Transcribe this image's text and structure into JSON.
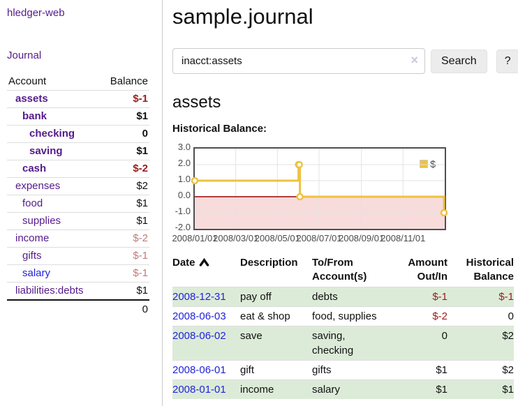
{
  "sidebar": {
    "app_title": "hledger-web",
    "journal_link": "Journal",
    "accounts": {
      "header_account": "Account",
      "header_balance": "Balance",
      "rows": [
        {
          "name": "assets",
          "level": 1,
          "bold": true,
          "name_color": "purple",
          "balance": "$-1",
          "balance_color": "darkred",
          "balance_bold": true
        },
        {
          "name": "bank",
          "level": 2,
          "bold": true,
          "name_color": "purple",
          "balance": "$1",
          "balance_color": "black",
          "balance_bold": true
        },
        {
          "name": "checking",
          "level": 3,
          "bold": true,
          "name_color": "purple",
          "balance": "0",
          "balance_color": "black",
          "balance_bold": true
        },
        {
          "name": "saving",
          "level": 3,
          "bold": true,
          "name_color": "purple",
          "balance": "$1",
          "balance_color": "black",
          "balance_bold": true
        },
        {
          "name": "cash",
          "level": 2,
          "bold": true,
          "name_color": "purple",
          "balance": "$-2",
          "balance_color": "darkred",
          "balance_bold": true
        },
        {
          "name": "expenses",
          "level": 1,
          "bold": false,
          "name_color": "purple",
          "balance": "$2",
          "balance_color": "black",
          "balance_bold": false
        },
        {
          "name": "food",
          "level": 2,
          "bold": false,
          "name_color": "purple",
          "balance": "$1",
          "balance_color": "black",
          "balance_bold": false
        },
        {
          "name": "supplies",
          "level": 2,
          "bold": false,
          "name_color": "purple",
          "balance": "$1",
          "balance_color": "black",
          "balance_bold": false
        },
        {
          "name": "income",
          "level": 1,
          "bold": false,
          "name_color": "purple",
          "balance": "$-2",
          "balance_color": "mutedred",
          "balance_bold": false
        },
        {
          "name": "gifts",
          "level": 2,
          "bold": false,
          "name_color": "purple",
          "balance": "$-1",
          "balance_color": "mutedred",
          "balance_bold": false
        },
        {
          "name": "salary",
          "level": 2,
          "bold": false,
          "name_color": "blue",
          "balance": "$-1",
          "balance_color": "mutedred",
          "balance_bold": false
        },
        {
          "name": "liabilities:debts",
          "level": 1,
          "bold": false,
          "name_color": "purple",
          "balance": "$1",
          "balance_color": "black",
          "balance_bold": false
        }
      ],
      "total": "0"
    }
  },
  "main": {
    "title": "sample.journal",
    "search": {
      "value": "inacct:assets",
      "clear_glyph": "×",
      "button_label": "Search",
      "help_label": "?"
    },
    "account_heading": "assets",
    "chart_title": "Historical Balance:"
  },
  "chart_data": {
    "type": "line",
    "step": true,
    "title": "Historical Balance:",
    "legend_label": "$",
    "legend_position": "top-right",
    "line_color": "#edc240",
    "negative_region_color": "#f8dbdb",
    "zero_line_color": "#9f0000",
    "grid": true,
    "xlim": [
      "2008-01-01",
      "2009-01-01"
    ],
    "ylim": [
      -2,
      3
    ],
    "y_ticks": [
      "3.0",
      "2.0",
      "1.0",
      "0.0",
      "-1.0",
      "-2.0"
    ],
    "x_ticks": [
      {
        "label": "2008/01/01",
        "date": "2008-01-01"
      },
      {
        "label": "2008/03/01",
        "date": "2008-03-01"
      },
      {
        "label": "2008/05/01",
        "date": "2008-05-01"
      },
      {
        "label": "2008/07/01",
        "date": "2008-07-01"
      },
      {
        "label": "2008/09/01",
        "date": "2008-09-01"
      },
      {
        "label": "2008/11/01",
        "date": "2008-11-01"
      }
    ],
    "series": [
      {
        "name": "$",
        "points": [
          [
            "2008-01-01",
            1
          ],
          [
            "2008-06-01",
            2
          ],
          [
            "2008-06-02",
            2
          ],
          [
            "2008-06-03",
            0
          ],
          [
            "2008-12-31",
            -1
          ]
        ]
      }
    ]
  },
  "register": {
    "headers": {
      "date": "Date",
      "description": "Description",
      "tofrom": "To/From Account(s)",
      "amount": "Amount Out/In",
      "balance": "Historical Balance"
    },
    "sort": {
      "column": "date",
      "direction": "asc"
    },
    "rows": [
      {
        "date": "2008-12-31",
        "description": "pay off",
        "accounts": "debts",
        "amount": "$-1",
        "amount_neg": true,
        "balance": "$-1",
        "balance_neg": true,
        "highlight": true
      },
      {
        "date": "2008-06-03",
        "description": "eat & shop",
        "accounts": "food, supplies",
        "amount": "$-2",
        "amount_neg": true,
        "balance": "0",
        "balance_neg": false,
        "highlight": false
      },
      {
        "date": "2008-06-02",
        "description": "save",
        "accounts": "saving, checking",
        "amount": "0",
        "amount_neg": false,
        "balance": "$2",
        "balance_neg": false,
        "highlight": true
      },
      {
        "date": "2008-06-01",
        "description": "gift",
        "accounts": "gifts",
        "amount": "$1",
        "amount_neg": false,
        "balance": "$2",
        "balance_neg": false,
        "highlight": false
      },
      {
        "date": "2008-01-01",
        "description": "income",
        "accounts": "salary",
        "amount": "$1",
        "amount_neg": false,
        "balance": "$1",
        "balance_neg": false,
        "highlight": true
      }
    ]
  },
  "colors": {
    "link_purple": "#551a8b",
    "link_blue": "#2222dd",
    "negative_strong": "#9b1c1c",
    "negative_muted": "#bf7b7b",
    "row_highlight": "#dcebd8",
    "chart_line": "#edc240",
    "chart_negative_bg": "#f8dbdb",
    "chart_zero_line": "#9f0000",
    "button_bg": "#ececec"
  }
}
